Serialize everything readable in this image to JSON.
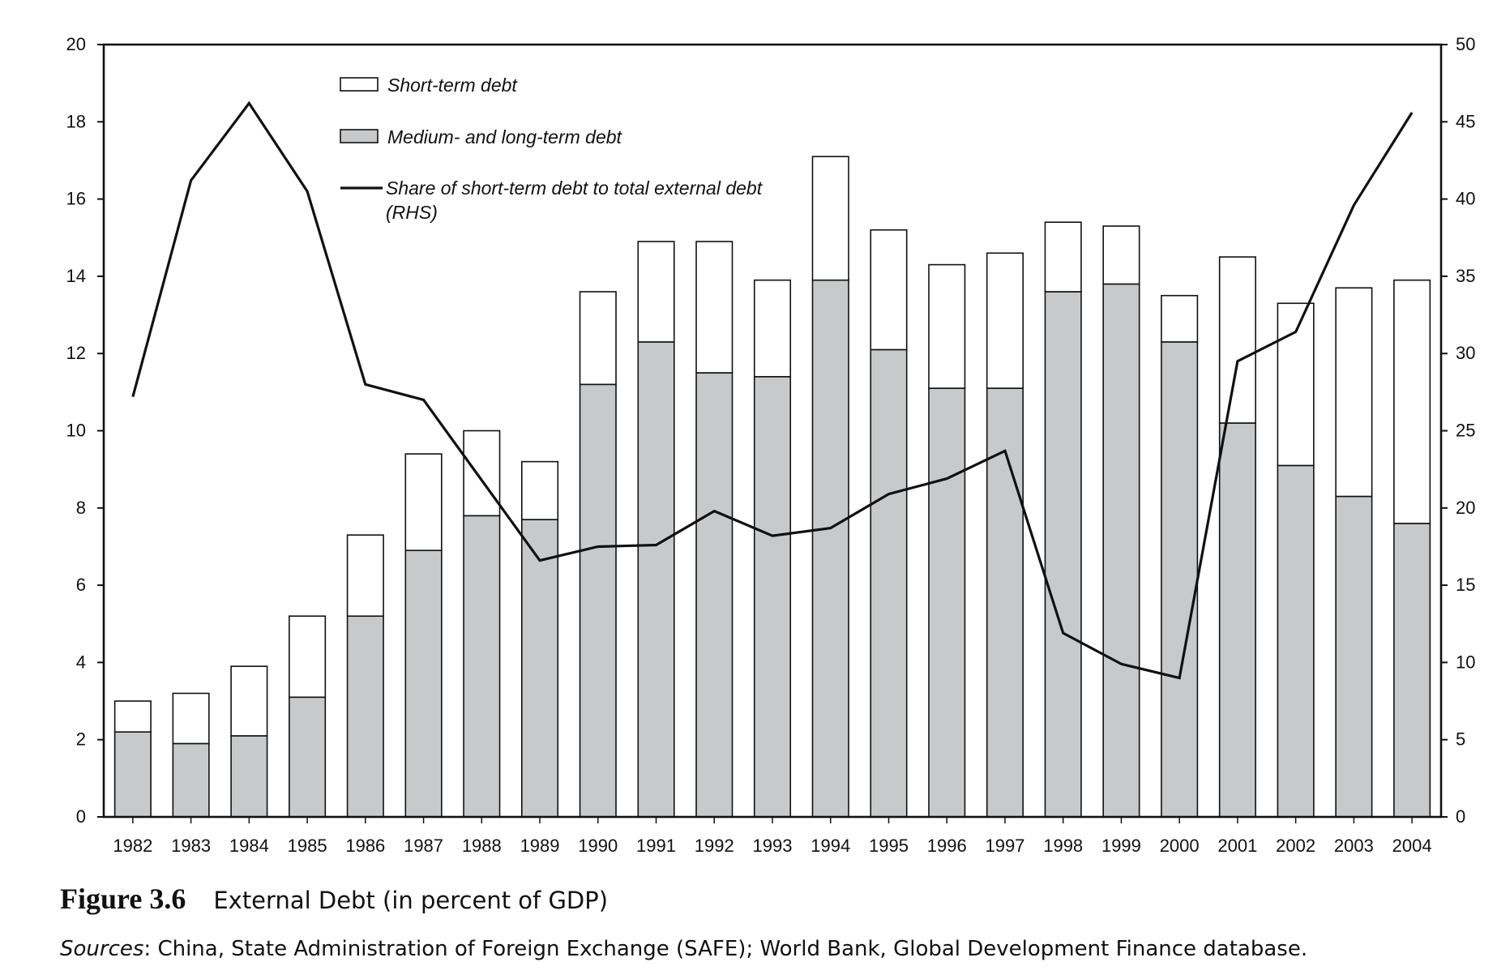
{
  "chart_data": {
    "type": "bar",
    "categories": [
      "1982",
      "1983",
      "1984",
      "1985",
      "1986",
      "1987",
      "1988",
      "1989",
      "1990",
      "1991",
      "1992",
      "1993",
      "1994",
      "1995",
      "1996",
      "1997",
      "1998",
      "1999",
      "2000",
      "2001",
      "2002",
      "2003",
      "2004"
    ],
    "series": [
      {
        "name": "Medium- and long-term debt",
        "kind": "stacked-bar",
        "axis": "left",
        "color": "#c8c9cb",
        "values": [
          2.2,
          1.9,
          2.1,
          3.1,
          5.2,
          6.9,
          7.8,
          7.7,
          11.2,
          12.3,
          11.5,
          11.4,
          13.9,
          12.1,
          11.1,
          11.1,
          13.6,
          13.8,
          12.3,
          10.2,
          9.1,
          8.3,
          7.6
        ]
      },
      {
        "name": "Short-term debt",
        "kind": "stacked-bar",
        "axis": "left",
        "color": "#ffffff",
        "values": [
          0.8,
          1.3,
          1.8,
          2.1,
          2.1,
          2.5,
          2.2,
          1.5,
          2.4,
          2.6,
          3.4,
          2.5,
          3.2,
          3.1,
          3.2,
          3.5,
          1.8,
          1.5,
          1.2,
          4.3,
          4.2,
          5.4,
          6.3
        ]
      },
      {
        "name": "Share of short-term debt to total external debt",
        "name_line2": "(RHS)",
        "kind": "line",
        "axis": "right",
        "color": "#111111",
        "values": [
          27.2,
          41.2,
          46.2,
          40.5,
          28.0,
          27.0,
          21.8,
          16.6,
          17.5,
          17.6,
          19.8,
          18.2,
          18.7,
          20.9,
          21.9,
          23.7,
          11.9,
          9.9,
          9.0,
          29.5,
          31.4,
          39.6,
          45.6
        ]
      }
    ],
    "y_left": {
      "min": 0,
      "max": 20,
      "ticks": [
        0,
        2,
        4,
        6,
        8,
        10,
        12,
        14,
        16,
        18,
        20
      ]
    },
    "y_right": {
      "min": 0,
      "max": 50,
      "ticks": [
        0,
        5,
        10,
        15,
        20,
        25,
        30,
        35,
        40,
        45,
        50
      ]
    },
    "legend": {
      "placement": "top-left"
    },
    "grid": false
  },
  "caption": {
    "figure_number": "Figure 3.6",
    "title": "External Debt (in percent of GDP)",
    "source_label": "Sources",
    "source_text": ": China, State Administration of Foreign Exchange (SAFE); World Bank, Global Development Finance database."
  }
}
